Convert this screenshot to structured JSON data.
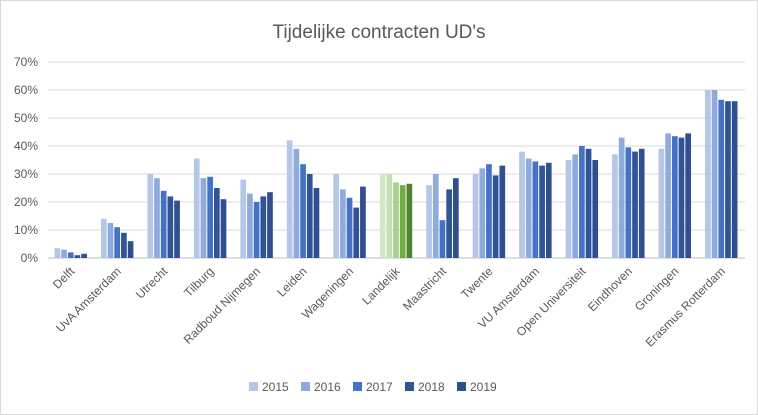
{
  "chart_data": {
    "type": "bar",
    "title": "Tijdelijke contracten UD's",
    "xlabel": "",
    "ylabel": "",
    "ylim": [
      0,
      70
    ],
    "yticks": [
      "0%",
      "10%",
      "20%",
      "30%",
      "40%",
      "50%",
      "60%",
      "70%"
    ],
    "grid": true,
    "legend_position": "bottom",
    "categories": [
      "Delft",
      "UvA Amsterdam",
      "Utrecht",
      "Tilburg",
      "Radboud Nijmegen",
      "Leiden",
      "Wageningen",
      "Landelijk",
      "Maastricht",
      "Twente",
      "VU Amsterdam",
      "Open Universiteit",
      "Eindhoven",
      "Groningen",
      "Erasmus Rotterdam"
    ],
    "series": [
      {
        "name": "2015",
        "color": "#b4c7e7",
        "values": [
          3.5,
          14,
          30,
          35.5,
          28,
          42,
          30,
          30,
          26,
          30,
          38,
          35,
          37,
          39,
          60
        ]
      },
      {
        "name": "2016",
        "color": "#8faadc",
        "values": [
          3,
          12.5,
          28.5,
          28.5,
          23,
          39,
          24.5,
          30,
          30,
          32,
          35.5,
          37,
          43,
          44.5,
          60
        ]
      },
      {
        "name": "2017",
        "color": "#4472c4",
        "values": [
          2,
          11,
          24,
          29,
          20,
          33.5,
          21.5,
          27,
          13.5,
          33.5,
          34.5,
          40,
          39.5,
          43.5,
          56.5
        ]
      },
      {
        "name": "2018",
        "color": "#2f5597",
        "values": [
          1,
          9,
          22,
          25,
          22,
          30,
          18,
          26,
          24.5,
          29.5,
          33,
          39,
          38,
          43,
          56
        ]
      },
      {
        "name": "2019",
        "color": "#2f4f8f",
        "values": [
          1.5,
          6,
          20.5,
          21,
          23.5,
          25,
          25.5,
          26.5,
          28.5,
          33,
          34,
          35,
          39,
          44.5,
          56
        ]
      }
    ],
    "highlight_category": "Landelijk",
    "highlight_colors": [
      "#d5e8c4",
      "#c5e0b4",
      "#a9d18e",
      "#70ad47",
      "#548235"
    ]
  }
}
